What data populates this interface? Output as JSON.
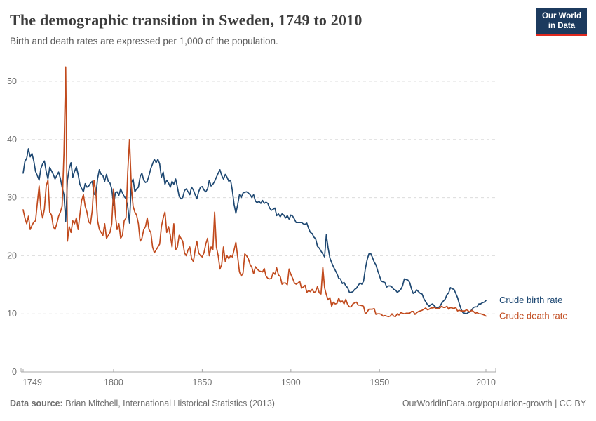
{
  "header": {
    "title": "The demographic transition in Sweden, 1749 to 2010",
    "subtitle": "Birth and death rates are expressed per 1,000 of the population.",
    "logo": {
      "line1": "Our World",
      "line2": "in Data",
      "bg_color": "#1c3a5e",
      "accent_color": "#e0281e"
    }
  },
  "footer": {
    "source_label": "Data source:",
    "source_text": " Brian Mitchell, International Historical Statistics (2013)",
    "credit": "OurWorldinData.org/population-growth | CC BY"
  },
  "chart_data": {
    "type": "line",
    "title": "The demographic transition in Sweden, 1749 to 2010",
    "xlabel": "",
    "ylabel": "",
    "xlim": [
      1749,
      2010
    ],
    "ylim": [
      0,
      53
    ],
    "x_ticks": [
      1749,
      1800,
      1850,
      1900,
      1950,
      2010
    ],
    "y_ticks": [
      0,
      10,
      20,
      30,
      40,
      50
    ],
    "grid": "horizontal-dashed",
    "grid_color": "#dcdcdc",
    "axis_color": "#a8a8a8",
    "tick_text_color": "#6e6e6e",
    "legend_position": "line-end-labels",
    "series": [
      {
        "name": "Crude birth rate",
        "color": "#1e4872",
        "start_year": 1749,
        "values": [
          34.2,
          36.2,
          36.8,
          38.4,
          37.0,
          37.6,
          36.3,
          34.5,
          33.8,
          33.0,
          35.0,
          35.8,
          36.3,
          34.5,
          33.2,
          35.2,
          34.6,
          34.0,
          33.2,
          33.8,
          34.4,
          33.3,
          31.8,
          30.5,
          25.9,
          33.0,
          35.0,
          36.0,
          33.5,
          34.5,
          35.3,
          34.0,
          32.3,
          31.6,
          31.0,
          32.4,
          31.8,
          32.0,
          32.5,
          32.8,
          30.6,
          30.4,
          33.3,
          34.8,
          34.0,
          33.8,
          32.8,
          34.0,
          32.8,
          32.5,
          31.5,
          28.7,
          30.8,
          31.0,
          30.4,
          31.5,
          30.8,
          30.2,
          29.8,
          28.4,
          25.6,
          32.5,
          33.2,
          31.0,
          31.5,
          31.8,
          33.6,
          34.2,
          33.0,
          32.6,
          32.8,
          33.8,
          35.0,
          35.8,
          36.6,
          36.0,
          36.6,
          35.8,
          33.5,
          34.4,
          32.3,
          33.0,
          32.5,
          31.8,
          32.8,
          32.3,
          33.2,
          31.8,
          30.2,
          29.8,
          30.0,
          31.2,
          31.5,
          31.0,
          30.5,
          31.8,
          31.3,
          30.5,
          29.8,
          31.0,
          31.8,
          31.9,
          31.3,
          31.0,
          31.5,
          33.0,
          32.0,
          32.3,
          32.8,
          33.5,
          34.2,
          34.8,
          33.8,
          33.2,
          34.0,
          33.5,
          32.8,
          33.0,
          31.2,
          28.8,
          27.3,
          28.8,
          30.5,
          30.0,
          30.8,
          30.9,
          31.0,
          30.8,
          30.5,
          30.0,
          30.5,
          29.4,
          29.1,
          29.4,
          29.0,
          29.5,
          29.0,
          29.2,
          29.0,
          28.2,
          27.8,
          28.0,
          28.2,
          26.9,
          27.2,
          26.7,
          27.2,
          27.0,
          26.5,
          26.9,
          26.3,
          27.0,
          26.8,
          26.3,
          25.7,
          25.7,
          25.7,
          25.7,
          25.5,
          25.4,
          25.6,
          24.7,
          24.0,
          23.8,
          23.2,
          22.9,
          21.6,
          21.3,
          20.8,
          20.3,
          19.8,
          23.6,
          21.4,
          19.6,
          18.8,
          18.1,
          17.5,
          16.9,
          16.1,
          16.0,
          15.2,
          15.4,
          14.8,
          14.5,
          13.7,
          13.7,
          13.8,
          14.2,
          14.4,
          14.9,
          15.3,
          15.1,
          15.6,
          17.7,
          19.3,
          20.3,
          20.4,
          19.7,
          18.9,
          18.4,
          17.4,
          16.5,
          15.6,
          15.5,
          15.4,
          14.6,
          14.8,
          14.8,
          14.6,
          14.2,
          14.1,
          13.7,
          13.9,
          14.2,
          14.8,
          16.0,
          15.9,
          15.8,
          15.4,
          14.3,
          13.5,
          13.7,
          14.1,
          13.8,
          13.5,
          13.4,
          12.6,
          12.1,
          11.6,
          11.3,
          11.6,
          11.7,
          11.3,
          11.1,
          11.0,
          11.3,
          11.8,
          12.2,
          12.5,
          13.3,
          13.6,
          14.5,
          14.3,
          14.2,
          13.5,
          12.8,
          11.7,
          10.8,
          10.2,
          10.1,
          10.0,
          10.2,
          10.3,
          10.7,
          11.1,
          11.2,
          11.2,
          11.7,
          11.7,
          11.9,
          12.0,
          12.3
        ]
      },
      {
        "name": "Crude death rate",
        "color": "#c14a1d",
        "start_year": 1749,
        "values": [
          27.9,
          26.5,
          25.5,
          26.8,
          24.5,
          25.2,
          25.8,
          26.0,
          29.0,
          32.0,
          28.0,
          26.5,
          28.0,
          32.0,
          33.0,
          27.5,
          27.0,
          25.0,
          24.5,
          25.5,
          26.8,
          27.5,
          28.5,
          37.5,
          52.5,
          22.5,
          25.0,
          24.0,
          26.0,
          25.5,
          26.5,
          24.5,
          27.0,
          29.5,
          30.5,
          28.5,
          27.5,
          25.8,
          25.5,
          27.8,
          33.0,
          31.0,
          26.0,
          24.5,
          24.0,
          23.5,
          25.5,
          23.0,
          23.5,
          24.0,
          25.5,
          31.5,
          27.0,
          24.5,
          25.5,
          23.0,
          23.5,
          26.0,
          26.5,
          34.5,
          40.0,
          32.0,
          28.5,
          27.5,
          27.0,
          25.5,
          22.5,
          23.0,
          24.5,
          25.0,
          26.5,
          24.5,
          24.0,
          21.5,
          20.5,
          21.0,
          21.5,
          22.0,
          25.0,
          26.5,
          27.5,
          24.0,
          25.0,
          23.5,
          21.5,
          25.5,
          21.0,
          21.5,
          23.5,
          23.0,
          22.5,
          20.5,
          20.0,
          21.0,
          21.5,
          19.5,
          19.0,
          21.0,
          22.5,
          20.5,
          20.0,
          19.8,
          20.5,
          22.0,
          23.0,
          20.0,
          21.5,
          21.0,
          27.5,
          21.5,
          20.0,
          17.7,
          18.5,
          21.5,
          19.0,
          20.0,
          19.5,
          20.0,
          19.8,
          21.0,
          22.3,
          19.8,
          17.2,
          16.5,
          17.0,
          20.3,
          20.0,
          19.5,
          18.5,
          18.0,
          16.9,
          18.1,
          17.7,
          17.4,
          17.3,
          17.2,
          17.8,
          16.5,
          16.1,
          16.0,
          16.1,
          17.1,
          16.8,
          17.9,
          16.7,
          16.4,
          15.1,
          15.3,
          15.3,
          15.0,
          17.7,
          16.8,
          16.1,
          15.3,
          15.1,
          15.3,
          15.6,
          14.4,
          14.6,
          14.9,
          13.7,
          14.0,
          13.8,
          14.2,
          13.7,
          13.8,
          14.7,
          13.6,
          13.4,
          18.0,
          14.5,
          13.3,
          12.4,
          12.8,
          11.3,
          12.0,
          11.7,
          11.8,
          12.7,
          12.0,
          12.2,
          11.7,
          12.5,
          11.6,
          11.2,
          11.2,
          11.7,
          11.9,
          12.0,
          11.5,
          11.5,
          11.4,
          11.3,
          10.0,
          10.3,
          10.8,
          10.8,
          10.8,
          10.9,
          9.9,
          10.0,
          10.0,
          9.9,
          9.6,
          9.7,
          9.6,
          9.5,
          9.6,
          10.0,
          9.6,
          9.5,
          10.0,
          9.8,
          10.2,
          10.1,
          10.0,
          10.1,
          10.1,
          10.1,
          10.4,
          10.4,
          9.9,
          10.2,
          10.4,
          10.5,
          10.6,
          10.8,
          11.0,
          10.7,
          10.8,
          11.0,
          11.0,
          11.1,
          10.9,
          10.9,
          11.0,
          11.3,
          11.1,
          11.1,
          11.3,
          10.8,
          11.1,
          11.0,
          10.9,
          11.1,
          10.5,
          10.6,
          10.5,
          10.5,
          10.5,
          10.7,
          10.5,
          10.3,
          10.6,
          10.4,
          10.1,
          10.2,
          10.0,
          10.0,
          9.9,
          9.8,
          9.6
        ]
      }
    ]
  }
}
